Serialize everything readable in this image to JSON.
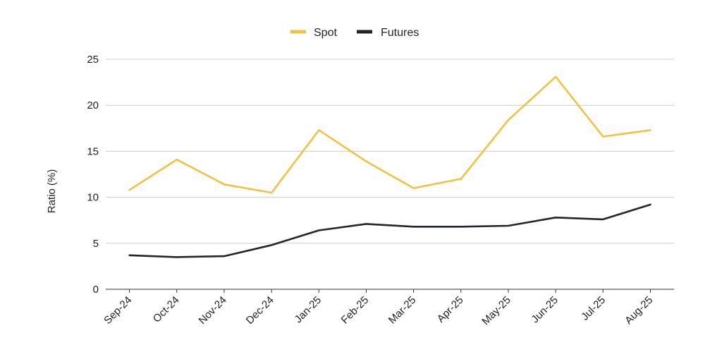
{
  "chart_data": {
    "type": "line",
    "categories": [
      "Sep-24",
      "Oct-24",
      "Nov-24",
      "Dec-24",
      "Jan-25",
      "Feb-25",
      "Mar-25",
      "Apr-25",
      "May-25",
      "Jun-25",
      "Jul-25",
      "Aug-25"
    ],
    "series": [
      {
        "name": "Spot",
        "color": "#F0C244",
        "values": [
          10.8,
          14.1,
          11.4,
          10.5,
          17.3,
          13.9,
          11.0,
          12.0,
          18.4,
          23.1,
          16.6,
          17.3
        ]
      },
      {
        "name": "Futures",
        "color": "#22262C",
        "values": [
          3.7,
          3.5,
          3.6,
          4.8,
          6.4,
          7.1,
          6.8,
          6.8,
          6.9,
          7.8,
          7.6,
          9.2
        ]
      }
    ],
    "ylabel": "Ratio (%)",
    "xlabel": "",
    "ylim": [
      0,
      25
    ],
    "yticks": [
      0,
      5,
      10,
      15,
      20,
      25
    ],
    "grid": true,
    "legend_position": "top-center"
  }
}
